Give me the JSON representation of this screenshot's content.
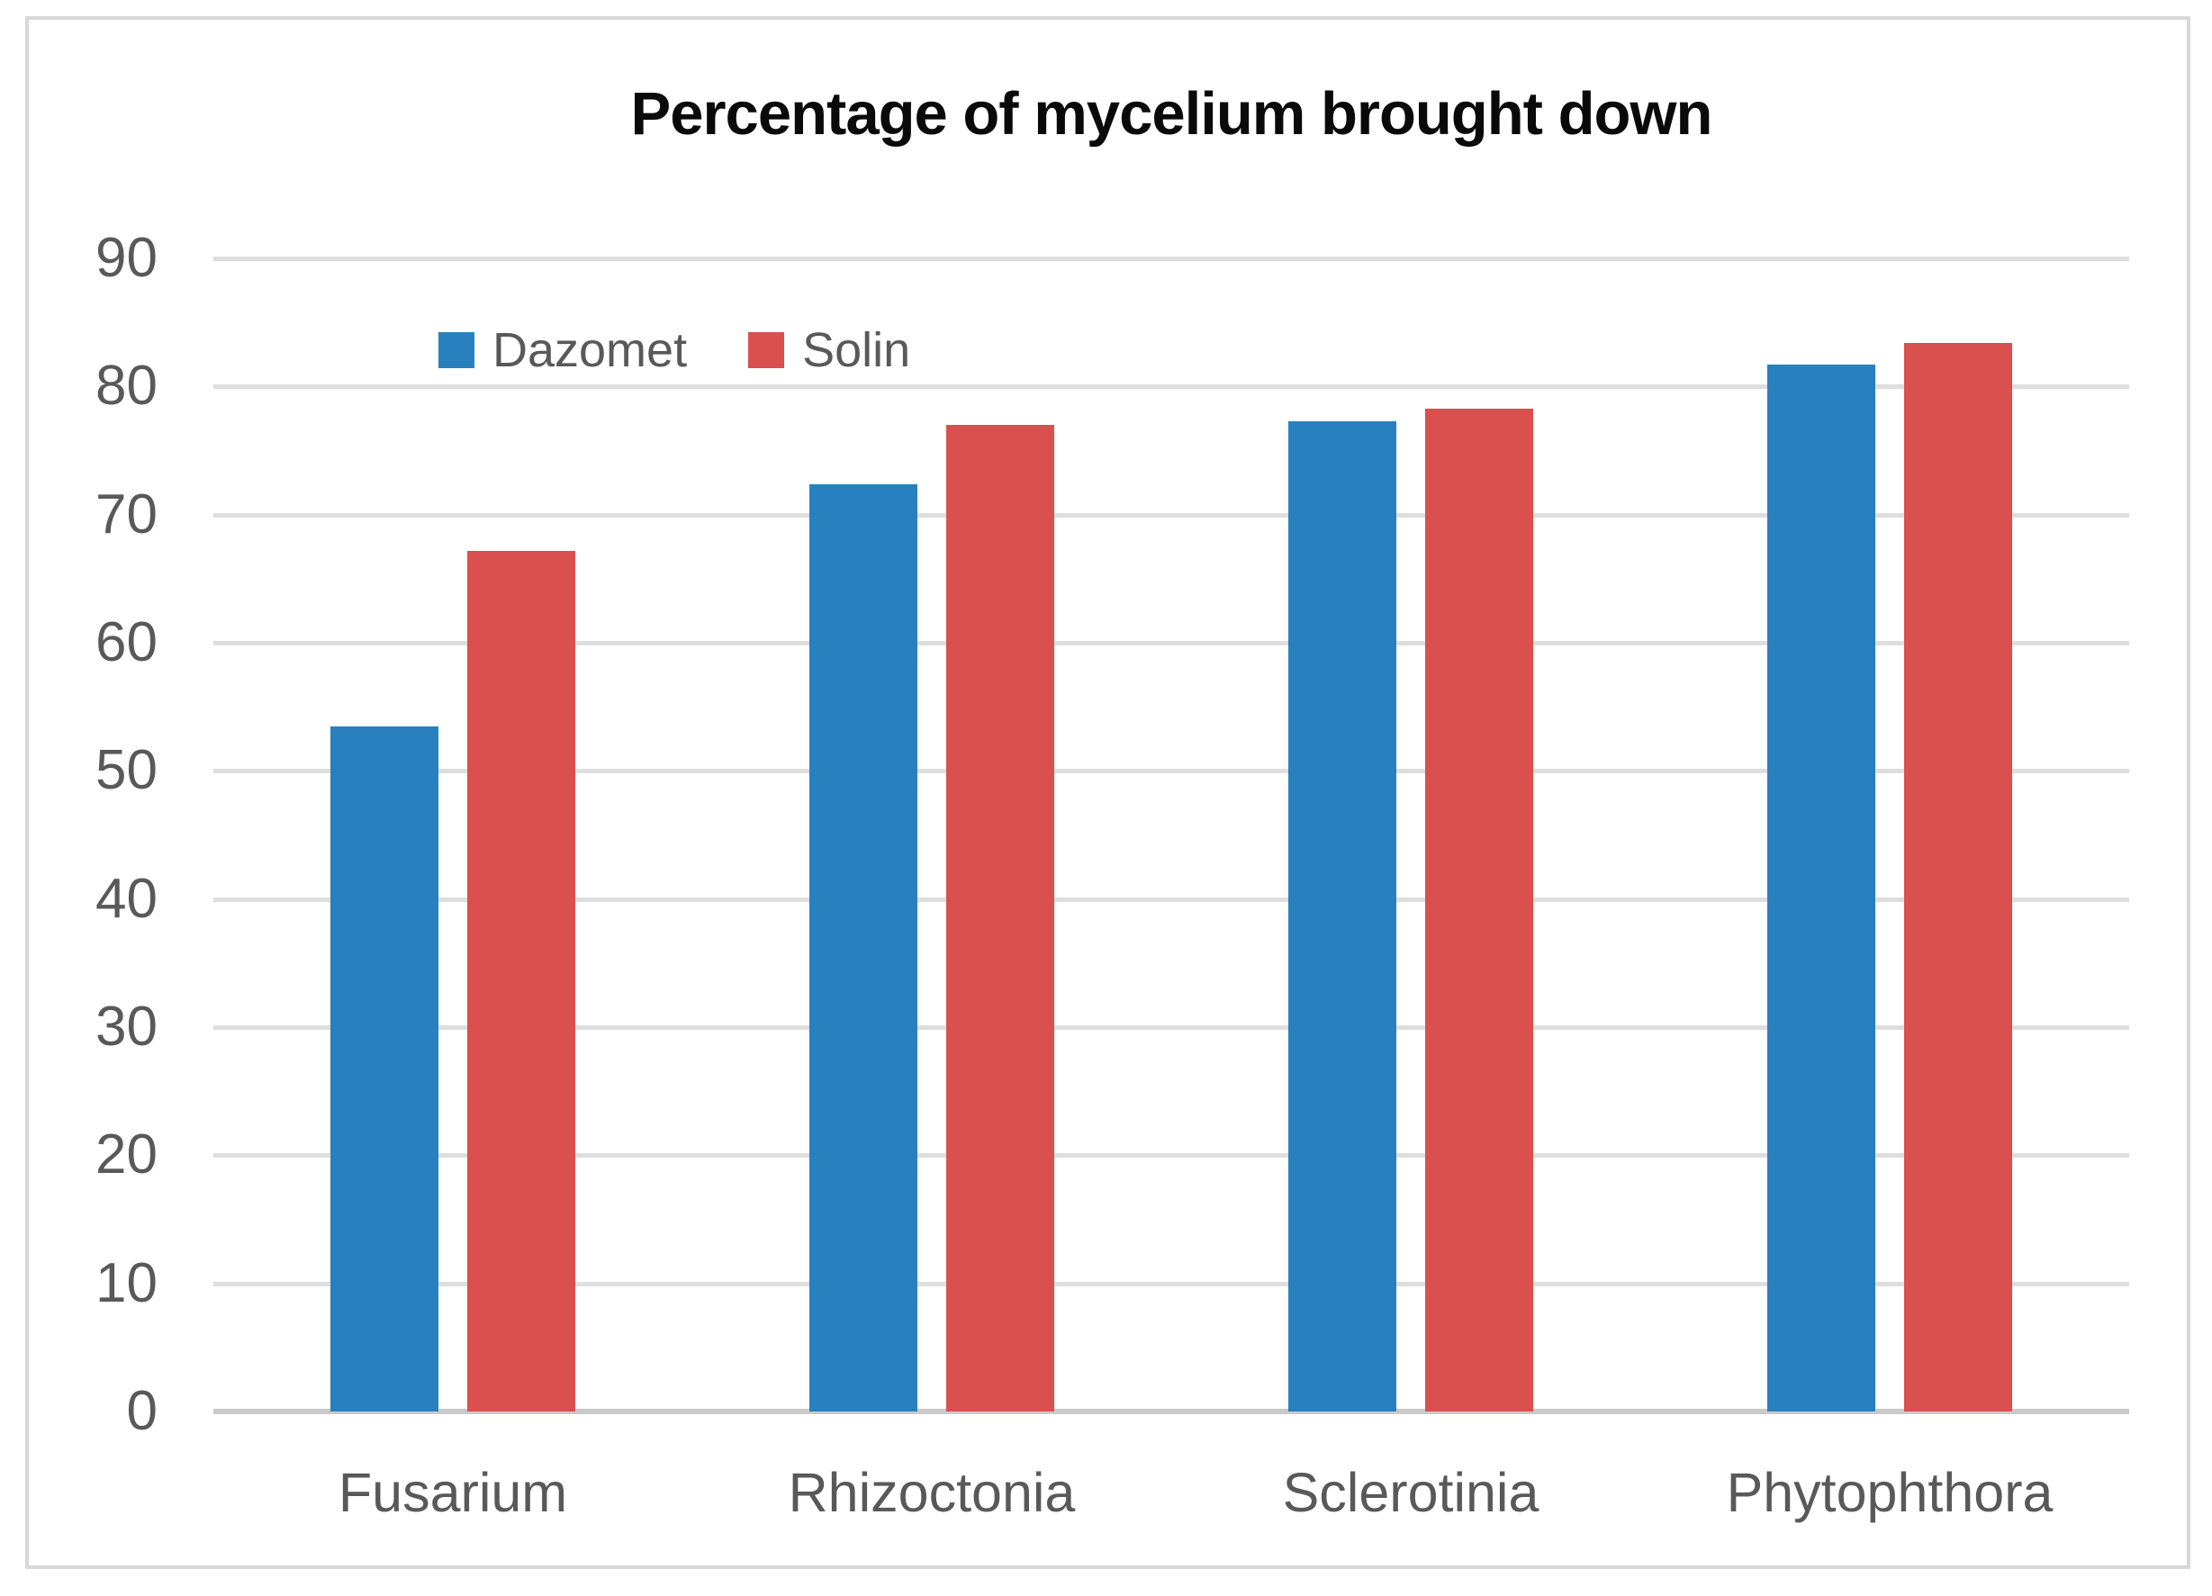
{
  "chart_data": {
    "type": "bar",
    "title": "Percentage of mycelium brought down",
    "categories": [
      "Fusarium",
      "Rhizoctonia",
      "Sclerotinia",
      "Phytophthora"
    ],
    "series": [
      {
        "name": "Dazomet",
        "color": "#2881be",
        "values": [
          53.5,
          72.4,
          77.3,
          81.7
        ]
      },
      {
        "name": "Solin",
        "color": "#d9504e",
        "values": [
          67.2,
          77.0,
          78.3,
          83.4
        ]
      }
    ],
    "ylabel": "",
    "xlabel": "",
    "ylim": [
      0,
      90
    ],
    "ytick_step": 10,
    "ytick_labels": [
      "0",
      "10",
      "20",
      "30",
      "40",
      "50",
      "60",
      "70",
      "80",
      "90"
    ],
    "grid": true,
    "legend_position": "inside-top-left"
  },
  "colors": {
    "background": "#ffffff",
    "frame_border": "#d8d8d8",
    "gridline": "#dedede",
    "baseline": "#c9c9c9",
    "axis_text": "#595959",
    "title_text": "#0a0a0a",
    "series_dazomet": "#2881be",
    "series_solin": "#d9504e"
  }
}
